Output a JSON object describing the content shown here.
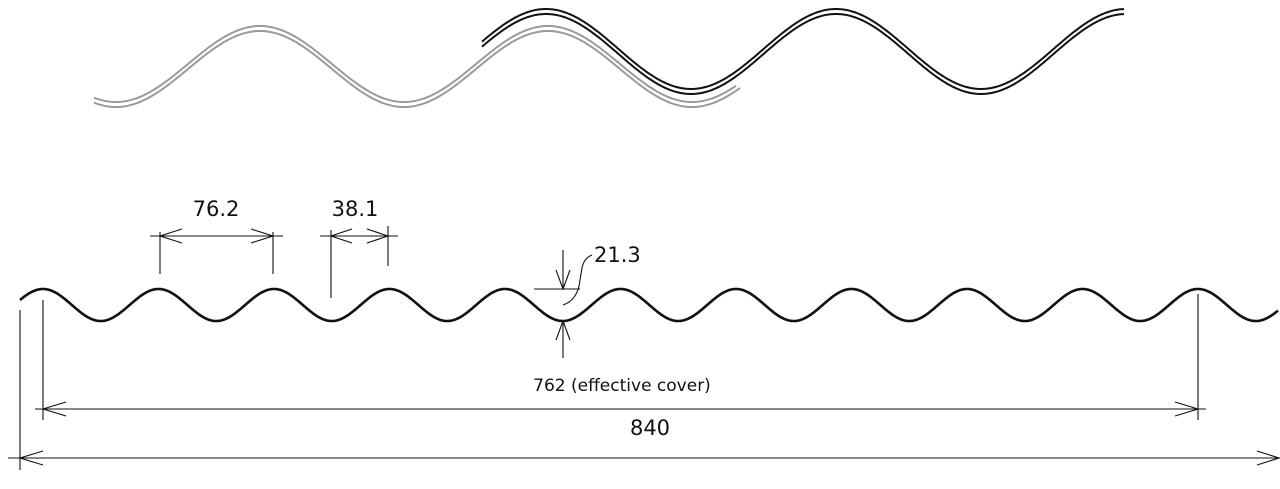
{
  "dimensions": {
    "pitch": "76.2",
    "half_pitch": "38.1",
    "depth": "21.3",
    "effective_cover": "762 (effective cover)",
    "overall_width": "840"
  },
  "colors": {
    "sheet_underlap": "#9a9a9a",
    "sheet_overlap": "#111111",
    "profile": "#111111",
    "dimension_lines": "#111111"
  }
}
